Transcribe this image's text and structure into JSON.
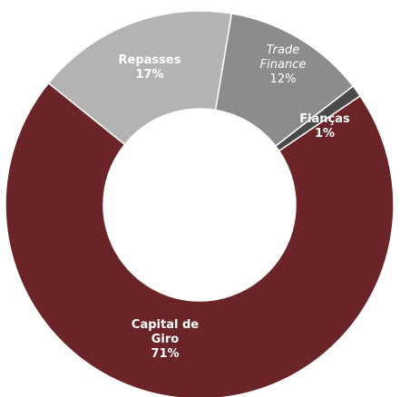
{
  "chart_data": {
    "type": "donut",
    "categories": [
      "Trade Finance",
      "Fianças",
      "Capital de Giro",
      "Repasses"
    ],
    "values": [
      12,
      1,
      71,
      17
    ],
    "value_labels": [
      "12%",
      "1%",
      "71%",
      "17%"
    ],
    "colors": [
      "#8c8c8c",
      "#4a4a4a",
      "#6b2427",
      "#b3b3b3"
    ]
  }
}
